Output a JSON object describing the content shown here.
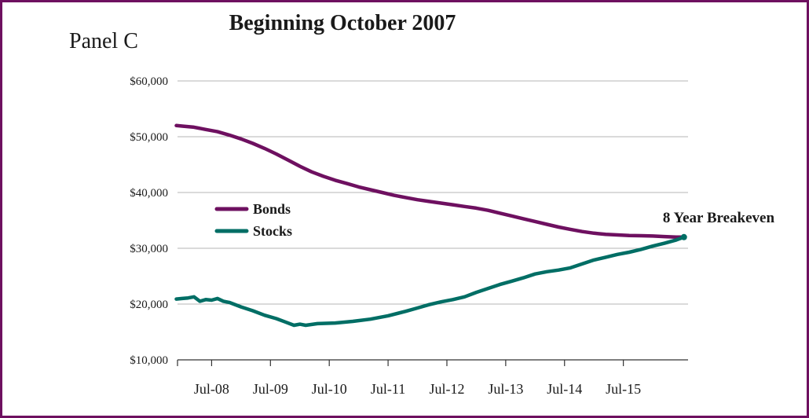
{
  "chart_data": {
    "type": "line",
    "title": "Beginning October 2007",
    "panel_label": "Panel C",
    "ylim": [
      10000,
      60000
    ],
    "y_ticks": [
      {
        "value": 60000,
        "label": "$60,000"
      },
      {
        "value": 50000,
        "label": "$50,000"
      },
      {
        "value": 40000,
        "label": "$40,000"
      },
      {
        "value": 30000,
        "label": "$30,000"
      },
      {
        "value": 20000,
        "label": "$20,000"
      },
      {
        "value": 10000,
        "label": "$10,000"
      }
    ],
    "x_ticks": [
      {
        "value": 2008.5,
        "label": "Jul-08"
      },
      {
        "value": 2009.5,
        "label": "Jul-09"
      },
      {
        "value": 2010.5,
        "label": "Jul-10"
      },
      {
        "value": 2011.5,
        "label": "Jul-11"
      },
      {
        "value": 2012.5,
        "label": "Jul-12"
      },
      {
        "value": 2013.5,
        "label": "Jul-13"
      },
      {
        "value": 2014.5,
        "label": "Jul-14"
      },
      {
        "value": 2015.5,
        "label": "Jul-15"
      }
    ],
    "grid": true,
    "legend_position": "center-left",
    "series": [
      {
        "name": "Bonds",
        "color": "#6e1060",
        "points": [
          [
            2007.9,
            52000
          ],
          [
            2008.0,
            51900
          ],
          [
            2008.2,
            51700
          ],
          [
            2008.4,
            51300
          ],
          [
            2008.6,
            50900
          ],
          [
            2008.8,
            50300
          ],
          [
            2009.0,
            49600
          ],
          [
            2009.2,
            48800
          ],
          [
            2009.4,
            47900
          ],
          [
            2009.6,
            46900
          ],
          [
            2009.8,
            45800
          ],
          [
            2010.0,
            44700
          ],
          [
            2010.2,
            43700
          ],
          [
            2010.4,
            42900
          ],
          [
            2010.6,
            42200
          ],
          [
            2010.8,
            41600
          ],
          [
            2011.0,
            41000
          ],
          [
            2011.2,
            40500
          ],
          [
            2011.4,
            40000
          ],
          [
            2011.6,
            39500
          ],
          [
            2011.8,
            39100
          ],
          [
            2012.0,
            38700
          ],
          [
            2012.2,
            38400
          ],
          [
            2012.4,
            38100
          ],
          [
            2012.6,
            37800
          ],
          [
            2012.8,
            37500
          ],
          [
            2013.0,
            37200
          ],
          [
            2013.2,
            36800
          ],
          [
            2013.4,
            36300
          ],
          [
            2013.6,
            35800
          ],
          [
            2013.8,
            35300
          ],
          [
            2014.0,
            34800
          ],
          [
            2014.2,
            34300
          ],
          [
            2014.4,
            33800
          ],
          [
            2014.6,
            33400
          ],
          [
            2014.8,
            33000
          ],
          [
            2015.0,
            32700
          ],
          [
            2015.2,
            32500
          ],
          [
            2015.4,
            32400
          ],
          [
            2015.6,
            32300
          ],
          [
            2015.8,
            32250
          ],
          [
            2016.0,
            32200
          ],
          [
            2016.2,
            32100
          ],
          [
            2016.4,
            32000
          ],
          [
            2016.53,
            32000
          ]
        ]
      },
      {
        "name": "Stocks",
        "color": "#006e65",
        "points": [
          [
            2007.9,
            20900
          ],
          [
            2008.0,
            21000
          ],
          [
            2008.1,
            21100
          ],
          [
            2008.2,
            21300
          ],
          [
            2008.3,
            20500
          ],
          [
            2008.4,
            20800
          ],
          [
            2008.5,
            20700
          ],
          [
            2008.6,
            21000
          ],
          [
            2008.7,
            20500
          ],
          [
            2008.8,
            20300
          ],
          [
            2009.0,
            19500
          ],
          [
            2009.2,
            18800
          ],
          [
            2009.4,
            18000
          ],
          [
            2009.6,
            17400
          ],
          [
            2009.75,
            16800
          ],
          [
            2009.9,
            16200
          ],
          [
            2010.0,
            16400
          ],
          [
            2010.1,
            16200
          ],
          [
            2010.3,
            16500
          ],
          [
            2010.6,
            16600
          ],
          [
            2010.9,
            16900
          ],
          [
            2011.2,
            17300
          ],
          [
            2011.5,
            17900
          ],
          [
            2011.8,
            18700
          ],
          [
            2012.0,
            19300
          ],
          [
            2012.2,
            19900
          ],
          [
            2012.4,
            20400
          ],
          [
            2012.6,
            20800
          ],
          [
            2012.8,
            21300
          ],
          [
            2013.0,
            22100
          ],
          [
            2013.2,
            22800
          ],
          [
            2013.4,
            23500
          ],
          [
            2013.6,
            24100
          ],
          [
            2013.8,
            24700
          ],
          [
            2014.0,
            25400
          ],
          [
            2014.2,
            25800
          ],
          [
            2014.4,
            26100
          ],
          [
            2014.5,
            26300
          ],
          [
            2014.6,
            26500
          ],
          [
            2014.8,
            27200
          ],
          [
            2015.0,
            27900
          ],
          [
            2015.2,
            28400
          ],
          [
            2015.4,
            28900
          ],
          [
            2015.6,
            29300
          ],
          [
            2015.8,
            29800
          ],
          [
            2016.0,
            30400
          ],
          [
            2016.2,
            30900
          ],
          [
            2016.4,
            31500
          ],
          [
            2016.53,
            32000
          ]
        ]
      }
    ],
    "annotations": [
      {
        "text": "8 Year Breakeven",
        "x": 2016.53,
        "y": 32000
      }
    ]
  }
}
